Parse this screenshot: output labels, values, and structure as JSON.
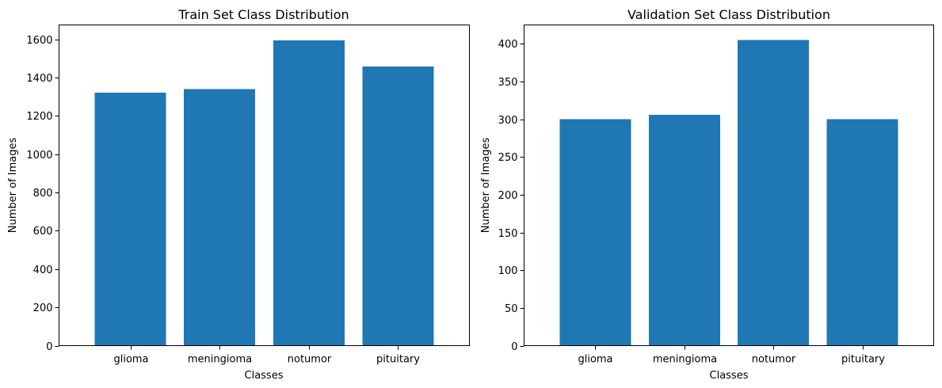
{
  "chart_data": [
    {
      "type": "bar",
      "title": "Train Set Class Distribution",
      "xlabel": "Classes",
      "ylabel": "Number of Images",
      "categories": [
        "glioma",
        "meningioma",
        "notumor",
        "pituitary"
      ],
      "values": [
        1321,
        1339,
        1595,
        1457
      ],
      "ylim": [
        0,
        1675
      ],
      "yticks": [
        0,
        200,
        400,
        600,
        800,
        1000,
        1200,
        1400,
        1600
      ],
      "color": "#1f77b4",
      "grid": false,
      "legend": false
    },
    {
      "type": "bar",
      "title": "Validation Set Class Distribution",
      "xlabel": "Classes",
      "ylabel": "Number of Images",
      "categories": [
        "glioma",
        "meningioma",
        "notumor",
        "pituitary"
      ],
      "values": [
        300,
        306,
        405,
        300
      ],
      "ylim": [
        0,
        425
      ],
      "yticks": [
        0,
        50,
        100,
        150,
        200,
        250,
        300,
        350,
        400
      ],
      "color": "#1f77b4",
      "grid": false,
      "legend": false
    }
  ]
}
